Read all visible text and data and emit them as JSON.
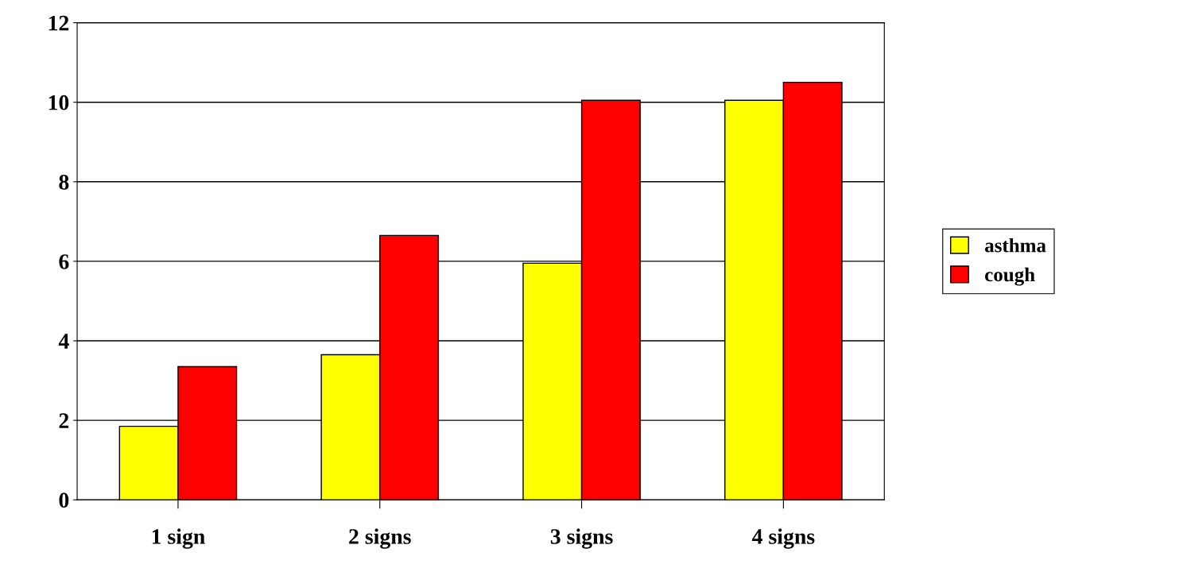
{
  "chart_data": {
    "type": "bar",
    "categories": [
      "1 sign",
      "2 signs",
      "3 signs",
      "4 signs"
    ],
    "series": [
      {
        "name": "asthma",
        "color": "#ffff00",
        "values": [
          1.85,
          3.65,
          5.95,
          10.05
        ]
      },
      {
        "name": "cough",
        "color": "#ff0000",
        "values": [
          3.35,
          6.65,
          10.05,
          10.5
        ]
      }
    ],
    "ylim": [
      0,
      12
    ],
    "yticks": [
      0,
      2,
      4,
      6,
      8,
      10,
      12
    ],
    "grid": "y",
    "legend": "right"
  }
}
